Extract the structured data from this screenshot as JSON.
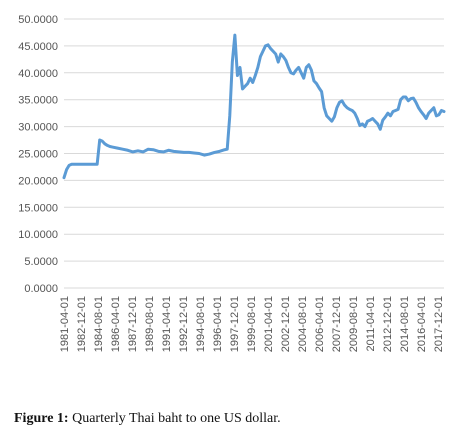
{
  "caption": {
    "label": "Figure 1:",
    "text": "Quarterly Thai baht to one US dollar."
  },
  "colors": {
    "line": "#5b9bd5",
    "grid": "#d9d9d9",
    "tick_text": "#555555"
  },
  "chart_data": {
    "type": "line",
    "title": "",
    "xlabel": "",
    "ylabel": "",
    "ylim": [
      0,
      50
    ],
    "yticks": [
      "0.0000",
      "5.0000",
      "10.0000",
      "15.0000",
      "20.0000",
      "25.0000",
      "30.0000",
      "35.0000",
      "40.0000",
      "45.0000",
      "50.0000"
    ],
    "xticks": [
      "1981-04-01",
      "1982-12-01",
      "1984-08-01",
      "1986-04-01",
      "1987-12-01",
      "1989-08-01",
      "1991-04-01",
      "1992-12-01",
      "1994-08-01",
      "1996-04-01",
      "1997-12-01",
      "1999-08-01",
      "2001-04-01",
      "2002-12-01",
      "2004-08-01",
      "2006-04-01",
      "2007-12-01",
      "2009-08-01",
      "2011-04-01",
      "2012-12-01",
      "2014-08-01",
      "2016-04-01",
      "2017-12-01"
    ],
    "grid": true,
    "legend": "none",
    "series": [
      {
        "x": [
          "1981-04-01",
          "1981-07-01",
          "1981-10-01",
          "1982-01-01",
          "1982-07-01",
          "1983-01-01",
          "1983-07-01",
          "1984-01-01",
          "1984-07-01",
          "1984-10-01",
          "1985-01-01",
          "1985-04-01",
          "1985-07-01",
          "1985-10-01",
          "1986-01-01",
          "1986-07-01",
          "1987-01-01",
          "1987-07-01",
          "1988-01-01",
          "1988-07-01",
          "1989-01-01",
          "1989-07-01",
          "1990-01-01",
          "1990-07-01",
          "1991-01-01",
          "1991-07-01",
          "1992-01-01",
          "1992-07-01",
          "1993-01-01",
          "1993-07-01",
          "1994-01-01",
          "1994-07-01",
          "1995-01-01",
          "1995-07-01",
          "1996-01-01",
          "1996-07-01",
          "1997-01-01",
          "1997-04-01",
          "1997-07-01",
          "1997-10-01",
          "1998-01-01",
          "1998-04-01",
          "1998-07-01",
          "1998-10-01",
          "1999-01-01",
          "1999-04-01",
          "1999-07-01",
          "1999-10-01",
          "2000-01-01",
          "2000-04-01",
          "2000-07-01",
          "2000-10-01",
          "2001-01-01",
          "2001-04-01",
          "2001-07-01",
          "2001-10-01",
          "2002-01-01",
          "2002-04-01",
          "2002-07-01",
          "2002-10-01",
          "2003-01-01",
          "2003-04-01",
          "2003-07-01",
          "2003-10-01",
          "2004-01-01",
          "2004-04-01",
          "2004-07-01",
          "2004-10-01",
          "2005-01-01",
          "2005-04-01",
          "2005-07-01",
          "2005-10-01",
          "2006-01-01",
          "2006-04-01",
          "2006-07-01",
          "2006-10-01",
          "2007-01-01",
          "2007-04-01",
          "2007-07-01",
          "2007-10-01",
          "2008-01-01",
          "2008-04-01",
          "2008-07-01",
          "2008-10-01",
          "2009-01-01",
          "2009-04-01",
          "2009-07-01",
          "2009-10-01",
          "2010-01-01",
          "2010-04-01",
          "2010-07-01",
          "2010-10-01",
          "2011-01-01",
          "2011-04-01",
          "2011-07-01",
          "2011-10-01",
          "2012-01-01",
          "2012-04-01",
          "2012-07-01",
          "2012-10-01",
          "2013-01-01",
          "2013-04-01",
          "2013-07-01",
          "2013-10-01",
          "2014-01-01",
          "2014-04-01",
          "2014-07-01",
          "2014-10-01",
          "2015-01-01",
          "2015-04-01",
          "2015-07-01",
          "2015-10-01",
          "2016-01-01",
          "2016-04-01",
          "2016-07-01",
          "2016-10-01",
          "2017-01-01",
          "2017-04-01",
          "2017-07-01",
          "2017-10-01",
          "2018-01-01",
          "2018-04-01",
          "2018-07-01"
        ],
        "values": [
          20.5,
          22.0,
          22.8,
          23.0,
          23.0,
          23.0,
          23.0,
          23.0,
          23.0,
          27.5,
          27.3,
          26.8,
          26.5,
          26.3,
          26.2,
          26.0,
          25.8,
          25.6,
          25.3,
          25.5,
          25.3,
          25.8,
          25.7,
          25.4,
          25.3,
          25.6,
          25.4,
          25.3,
          25.2,
          25.2,
          25.1,
          25.0,
          24.7,
          24.9,
          25.2,
          25.4,
          25.7,
          25.8,
          32.0,
          42.0,
          47.0,
          39.5,
          41.0,
          37.0,
          37.5,
          38.0,
          39.0,
          38.2,
          39.5,
          41.0,
          43.0,
          44.0,
          45.0,
          45.2,
          44.5,
          44.0,
          43.5,
          42.0,
          43.5,
          43.0,
          42.3,
          41.0,
          40.0,
          39.8,
          40.5,
          41.0,
          40.0,
          39.0,
          41.0,
          41.5,
          40.5,
          38.5,
          38.0,
          37.2,
          36.5,
          33.5,
          32.0,
          31.5,
          31.0,
          31.8,
          33.5,
          34.5,
          34.8,
          34.0,
          33.5,
          33.2,
          33.0,
          32.5,
          31.5,
          30.2,
          30.5,
          30.0,
          31.0,
          31.2,
          31.5,
          31.0,
          30.5,
          29.5,
          31.2,
          31.8,
          32.5,
          32.0,
          32.8,
          33.0,
          33.2,
          35.0,
          35.5,
          35.5,
          34.8,
          35.2,
          35.3,
          34.5,
          33.5,
          32.8,
          32.2,
          31.5,
          32.5,
          33.0,
          33.5,
          32.0,
          32.2,
          33.0,
          32.8
        ]
      }
    ]
  }
}
